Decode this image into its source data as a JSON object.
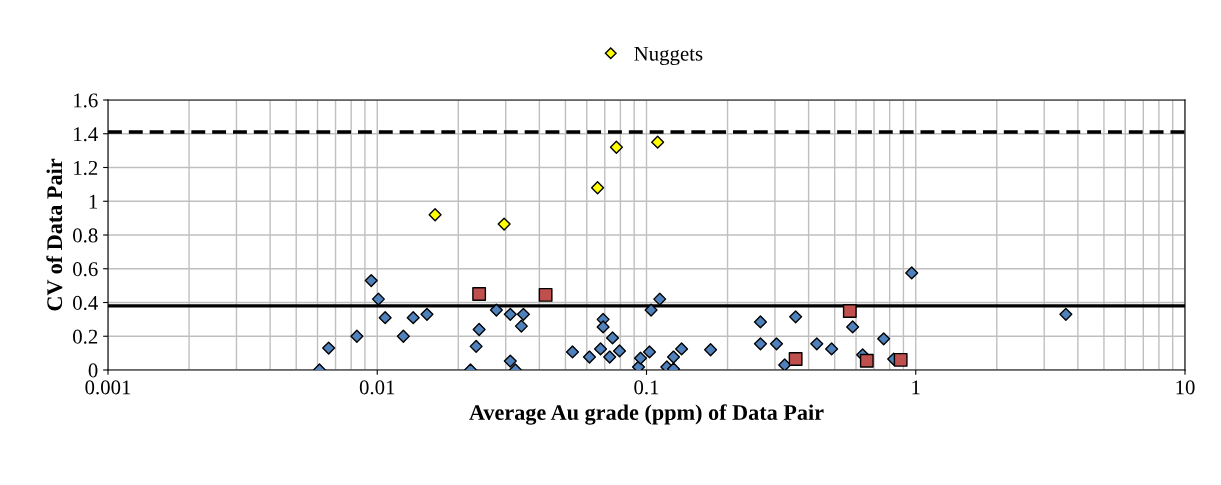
{
  "chart_data": {
    "type": "scatter",
    "xlabel": "Average Au grade (ppm) of Data Pair",
    "ylabel": "CV of Data Pair",
    "log": "x",
    "xlim": [
      0.001,
      10
    ],
    "xticks": [
      {
        "value": 0.001,
        "label": "0.001"
      },
      {
        "value": 0.01,
        "label": "0.01"
      },
      {
        "value": 0.1,
        "label": "0.1"
      },
      {
        "value": 1,
        "label": "1"
      },
      {
        "value": 10,
        "label": "10"
      }
    ],
    "ylim": [
      0,
      1.6
    ],
    "yticks": [
      0,
      {
        "value": 0.2,
        "label": "0.2"
      },
      {
        "value": 0.4,
        "label": "0.4"
      },
      {
        "value": 0.6,
        "label": "0.6"
      },
      {
        "value": 0.8,
        "label": "0.8"
      },
      1,
      {
        "value": 1.2,
        "label": "1.2"
      },
      {
        "value": 1.4,
        "label": "1.4"
      },
      {
        "value": 1.6,
        "label": "1.6"
      }
    ],
    "grid": true,
    "legend": "top",
    "series": [
      {
        "color": "#4f81bd",
        "marker": "diamond",
        "x": [
          0.0061,
          0.0066,
          0.0084,
          0.0095,
          0.0101,
          0.0107,
          0.0125,
          0.0136,
          0.0153,
          0.0222,
          0.0233,
          0.0239,
          0.0277,
          0.0312,
          0.0312,
          0.0326,
          0.0343,
          0.0349,
          0.0531,
          0.0614,
          0.0675,
          0.069,
          0.069,
          0.0748,
          0.073,
          0.0794,
          0.0934,
          0.095,
          0.1026,
          0.104,
          0.112,
          0.116,
          0.119,
          0.126,
          0.126,
          0.135,
          0.173,
          0.265,
          0.265,
          0.304,
          0.326,
          0.358,
          0.429,
          0.487,
          0.583,
          0.635,
          0.76,
          0.828,
          0.966,
          3.61
        ],
        "values": [
          0,
          0.13,
          0.2,
          0.53,
          0.42,
          0.31,
          0.2,
          0.31,
          0.33,
          0,
          0.14,
          0.24,
          0.355,
          0.33,
          0.053,
          0,
          0.26,
          0.33,
          0.107,
          0.077,
          0.125,
          0.3,
          0.255,
          0.19,
          0.077,
          0.113,
          0.018,
          0.07,
          0.107,
          0.355,
          0.42,
          null,
          0.018,
          0.006,
          0.077,
          0.125,
          0.12,
          0.285,
          0.155,
          0.155,
          0.03,
          0.315,
          0.155,
          0.125,
          0.255,
          0.09,
          0.185,
          0.065,
          0.575,
          0.33
        ]
      },
      {
        "color": "#c0504d",
        "marker": "square",
        "x": [
          0.0239,
          0.0422,
          0.358,
          0.569,
          0.658,
          0.879
        ],
        "values": [
          0.45,
          0.445,
          0.065,
          0.35,
          0.055,
          0.06
        ]
      },
      {
        "name": "Nuggets",
        "color": "#ffff00",
        "marker": "diamond",
        "x": [
          0.0164,
          0.0296,
          0.0658,
          0.0773,
          0.11
        ],
        "values": [
          0.92,
          0.865,
          1.08,
          1.32,
          1.35
        ]
      }
    ],
    "ref_lines": [
      {
        "axis": "y",
        "value": 0.38,
        "color": "#000000",
        "line_style": "solid"
      },
      {
        "axis": "y",
        "value": 1.41,
        "color": "#000000",
        "line_style": "dashed"
      }
    ]
  }
}
